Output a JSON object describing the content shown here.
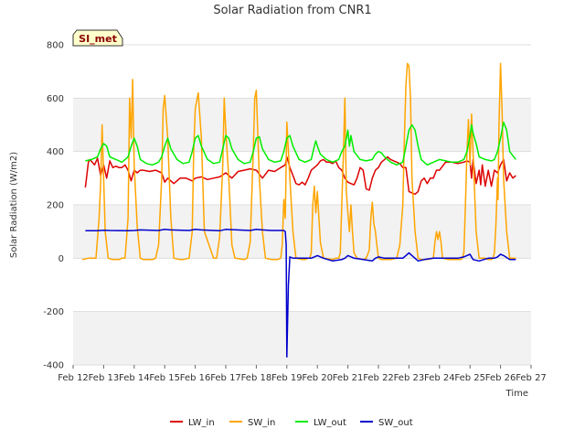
{
  "chart_data": {
    "type": "line",
    "title": "Solar Radiation from CNR1",
    "xlabel": "Time",
    "ylabel": "Solar Radiation (W/m2)",
    "site_label": "SI_met",
    "ylim": [
      -400,
      800
    ],
    "xlim": [
      12,
      27
    ],
    "x_ticks": [
      12,
      13,
      14,
      15,
      16,
      17,
      18,
      19,
      20,
      21,
      22,
      23,
      24,
      25,
      26,
      27
    ],
    "x_tick_labels": [
      "Feb 12",
      "Feb 13",
      "Feb 14",
      "Feb 15",
      "Feb 16",
      "Feb 17",
      "Feb 18",
      "Feb 19",
      "Feb 20",
      "Feb 21",
      "Feb 22",
      "Feb 23",
      "Feb 24",
      "Feb 25",
      "Feb 26",
      "Feb 27"
    ],
    "y_ticks": [
      -400,
      -200,
      0,
      200,
      400,
      600,
      800
    ],
    "y_tick_labels": [
      "-400",
      "-200",
      "0",
      "200",
      "400",
      "600",
      "800"
    ],
    "grid": true,
    "legend_position": "bottom",
    "series": [
      {
        "name": "LW_in",
        "color": "#dd0000",
        "x": [
          12.4,
          12.5,
          12.55,
          12.7,
          12.8,
          12.9,
          13.0,
          13.1,
          13.2,
          13.3,
          13.4,
          13.5,
          13.6,
          13.7,
          13.8,
          13.9,
          14.0,
          14.1,
          14.2,
          14.3,
          14.5,
          14.7,
          14.9,
          15.0,
          15.1,
          15.3,
          15.5,
          15.7,
          15.9,
          16.0,
          16.2,
          16.4,
          16.6,
          16.8,
          17.0,
          17.2,
          17.4,
          17.6,
          17.8,
          18.0,
          18.2,
          18.4,
          18.6,
          18.8,
          18.95,
          19.0,
          19.1,
          19.2,
          19.3,
          19.4,
          19.5,
          19.6,
          19.7,
          19.8,
          19.9,
          20.0,
          20.1,
          20.2,
          20.3,
          20.4,
          20.5,
          20.6,
          20.7,
          20.8,
          20.9,
          21.0,
          21.1,
          21.2,
          21.3,
          21.4,
          21.5,
          21.6,
          21.7,
          21.8,
          21.9,
          22.0,
          22.1,
          22.2,
          22.3,
          22.4,
          22.5,
          22.6,
          22.7,
          22.8,
          22.9,
          23.0,
          23.1,
          23.2,
          23.3,
          23.4,
          23.5,
          23.6,
          23.7,
          23.8,
          23.9,
          24.0,
          24.2,
          24.4,
          24.6,
          24.8,
          24.9,
          25.0,
          25.05,
          25.1,
          25.2,
          25.3,
          25.35,
          25.4,
          25.5,
          25.6,
          25.7,
          25.8,
          25.9,
          26.0,
          26.1,
          26.2,
          26.3,
          26.4,
          26.5
        ],
        "y": [
          265,
          360,
          370,
          350,
          375,
          310,
          350,
          300,
          365,
          340,
          345,
          340,
          340,
          350,
          330,
          290,
          330,
          320,
          330,
          330,
          325,
          330,
          320,
          285,
          300,
          280,
          300,
          300,
          290,
          300,
          305,
          295,
          300,
          305,
          320,
          300,
          325,
          330,
          335,
          330,
          300,
          330,
          325,
          340,
          350,
          380,
          340,
          310,
          280,
          275,
          285,
          275,
          300,
          330,
          340,
          350,
          365,
          370,
          360,
          360,
          355,
          365,
          340,
          330,
          300,
          285,
          280,
          275,
          300,
          340,
          330,
          260,
          255,
          300,
          330,
          340,
          360,
          370,
          380,
          370,
          365,
          360,
          355,
          340,
          340,
          250,
          245,
          240,
          250,
          290,
          300,
          280,
          300,
          300,
          330,
          330,
          360,
          360,
          355,
          360,
          365,
          360,
          300,
          370,
          280,
          330,
          275,
          350,
          270,
          330,
          270,
          330,
          320,
          350,
          370,
          290,
          320,
          300,
          310
        ]
      },
      {
        "name": "SW_in",
        "color": "#ffa500",
        "x": [
          12.3,
          12.5,
          12.6,
          12.75,
          12.85,
          12.9,
          12.95,
          13.0,
          13.05,
          13.15,
          13.3,
          13.5,
          13.6,
          13.7,
          13.8,
          13.85,
          13.9,
          13.95,
          14.0,
          14.1,
          14.2,
          14.3,
          14.6,
          14.7,
          14.8,
          14.9,
          14.95,
          15.0,
          15.1,
          15.2,
          15.3,
          15.5,
          15.6,
          15.8,
          15.9,
          15.95,
          16.0,
          16.1,
          16.2,
          16.3,
          16.6,
          16.7,
          16.8,
          16.9,
          16.95,
          17.0,
          17.1,
          17.2,
          17.3,
          17.6,
          17.7,
          17.8,
          17.9,
          17.95,
          18.0,
          18.1,
          18.2,
          18.3,
          18.5,
          18.7,
          18.8,
          18.85,
          18.9,
          18.95,
          19.0,
          19.1,
          19.2,
          19.3,
          19.5,
          19.6,
          19.7,
          19.75,
          19.8,
          19.85,
          19.9,
          19.95,
          20.0,
          20.05,
          20.1,
          20.2,
          20.5,
          20.6,
          20.7,
          20.75,
          20.8,
          20.85,
          20.9,
          20.95,
          21.0,
          21.05,
          21.1,
          21.15,
          21.2,
          21.3,
          21.5,
          21.6,
          21.7,
          21.75,
          21.8,
          21.85,
          21.9,
          21.95,
          22.0,
          22.1,
          22.4,
          22.6,
          22.7,
          22.8,
          22.85,
          22.9,
          22.95,
          23.0,
          23.05,
          23.1,
          23.2,
          23.3,
          23.4,
          23.6,
          23.8,
          23.85,
          23.9,
          23.95,
          24.0,
          24.05,
          24.1,
          24.3,
          24.6,
          24.7,
          24.75,
          24.8,
          24.85,
          24.9,
          24.95,
          25.0,
          25.05,
          25.1,
          25.15,
          25.2,
          25.3,
          25.5,
          25.6,
          25.7,
          25.75,
          25.8,
          25.85,
          25.9,
          25.92,
          25.95,
          26.0,
          26.05,
          26.1,
          26.2,
          26.3,
          26.5
        ],
        "y": [
          -5,
          0,
          0,
          0,
          150,
          280,
          500,
          300,
          100,
          0,
          -5,
          -5,
          0,
          0,
          150,
          600,
          450,
          670,
          350,
          120,
          0,
          -5,
          -5,
          0,
          50,
          300,
          560,
          610,
          450,
          150,
          0,
          -5,
          -5,
          0,
          100,
          400,
          560,
          620,
          450,
          100,
          0,
          0,
          80,
          350,
          600,
          480,
          300,
          50,
          0,
          -5,
          0,
          60,
          400,
          600,
          630,
          300,
          100,
          0,
          -5,
          -5,
          0,
          50,
          220,
          150,
          510,
          300,
          100,
          0,
          -5,
          -5,
          0,
          0,
          20,
          200,
          270,
          170,
          250,
          150,
          60,
          0,
          -5,
          0,
          0,
          20,
          200,
          380,
          600,
          250,
          170,
          100,
          200,
          100,
          20,
          0,
          -5,
          0,
          30,
          150,
          210,
          130,
          100,
          50,
          0,
          -5,
          -5,
          0,
          50,
          200,
          450,
          650,
          730,
          720,
          600,
          300,
          100,
          0,
          -5,
          -5,
          0,
          60,
          100,
          70,
          100,
          60,
          0,
          -5,
          -5,
          -5,
          0,
          20,
          200,
          400,
          520,
          350,
          540,
          400,
          250,
          100,
          0,
          0,
          -5,
          -5,
          0,
          20,
          130,
          300,
          220,
          500,
          730,
          550,
          300,
          100,
          0,
          0
        ]
      },
      {
        "name": "LW_out",
        "color": "#00ee00",
        "x": [
          12.4,
          12.6,
          12.8,
          12.9,
          13.0,
          13.1,
          13.2,
          13.4,
          13.6,
          13.7,
          13.8,
          13.9,
          14.0,
          14.1,
          14.2,
          14.4,
          14.6,
          14.8,
          14.9,
          15.0,
          15.1,
          15.2,
          15.4,
          15.6,
          15.8,
          15.9,
          16.0,
          16.1,
          16.2,
          16.4,
          16.6,
          16.8,
          16.9,
          17.0,
          17.1,
          17.2,
          17.4,
          17.6,
          17.8,
          17.9,
          18.0,
          18.1,
          18.2,
          18.4,
          18.6,
          18.8,
          18.9,
          19.0,
          19.1,
          19.2,
          19.4,
          19.6,
          19.8,
          19.9,
          19.95,
          20.0,
          20.1,
          20.3,
          20.5,
          20.7,
          20.8,
          20.9,
          21.0,
          21.05,
          21.1,
          21.2,
          21.4,
          21.6,
          21.8,
          21.9,
          22.0,
          22.1,
          22.2,
          22.4,
          22.6,
          22.8,
          22.9,
          23.0,
          23.1,
          23.2,
          23.3,
          23.4,
          23.6,
          23.8,
          24.0,
          24.2,
          24.4,
          24.6,
          24.8,
          24.9,
          25.0,
          25.05,
          25.1,
          25.2,
          25.3,
          25.5,
          25.7,
          25.8,
          25.9,
          26.0,
          26.1,
          26.2,
          26.3,
          26.5
        ],
        "y": [
          365,
          370,
          380,
          410,
          430,
          420,
          380,
          370,
          360,
          370,
          380,
          420,
          450,
          420,
          370,
          355,
          350,
          360,
          380,
          420,
          450,
          410,
          370,
          355,
          360,
          400,
          450,
          460,
          420,
          370,
          355,
          360,
          410,
          460,
          450,
          410,
          370,
          355,
          360,
          400,
          450,
          455,
          410,
          370,
          360,
          365,
          400,
          450,
          460,
          420,
          370,
          360,
          370,
          420,
          440,
          420,
          390,
          370,
          360,
          370,
          400,
          420,
          480,
          420,
          460,
          400,
          370,
          365,
          370,
          390,
          400,
          395,
          380,
          360,
          350,
          360,
          420,
          480,
          500,
          480,
          420,
          370,
          350,
          360,
          370,
          365,
          360,
          360,
          370,
          400,
          460,
          500,
          470,
          430,
          380,
          370,
          365,
          370,
          400,
          450,
          510,
          480,
          400,
          370
        ]
      },
      {
        "name": "SW_out",
        "color": "#0000cc",
        "x": [
          12.4,
          12.8,
          13.0,
          13.2,
          13.8,
          14.0,
          14.2,
          14.8,
          15.0,
          15.2,
          15.8,
          16.0,
          16.2,
          16.8,
          17.0,
          17.2,
          17.8,
          18.0,
          18.2,
          18.5,
          18.9,
          18.95,
          18.98,
          19.0,
          19.05,
          19.1,
          19.2,
          19.5,
          19.8,
          19.9,
          20.0,
          20.2,
          20.5,
          20.8,
          20.9,
          21.0,
          21.2,
          21.5,
          21.8,
          21.9,
          22.0,
          22.2,
          22.5,
          22.8,
          22.9,
          23.0,
          23.1,
          23.3,
          23.5,
          23.8,
          24.0,
          24.3,
          24.6,
          24.8,
          24.9,
          25.0,
          25.1,
          25.3,
          25.6,
          25.8,
          25.9,
          26.0,
          26.1,
          26.3,
          26.5
        ],
        "y": [
          103,
          103,
          105,
          104,
          103,
          104,
          106,
          104,
          108,
          106,
          104,
          108,
          106,
          103,
          108,
          107,
          104,
          108,
          106,
          104,
          104,
          100,
          50,
          -370,
          -100,
          5,
          0,
          0,
          0,
          5,
          10,
          0,
          -10,
          -5,
          0,
          10,
          0,
          -5,
          -10,
          0,
          5,
          0,
          0,
          0,
          10,
          20,
          10,
          -10,
          -5,
          0,
          0,
          0,
          0,
          5,
          10,
          15,
          -5,
          -10,
          0,
          0,
          5,
          15,
          10,
          -5,
          -5
        ]
      }
    ]
  }
}
